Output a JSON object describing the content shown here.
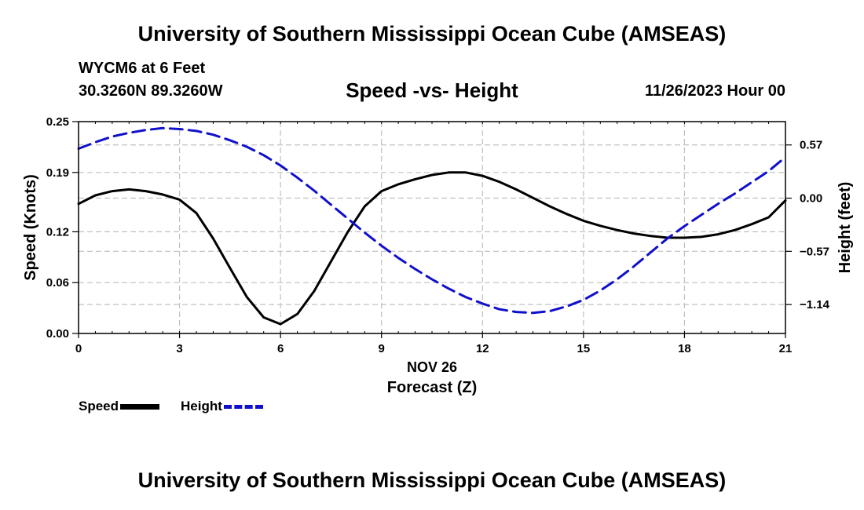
{
  "header": {
    "title": "University of Southern Mississippi Ocean Cube (AMSEAS)",
    "station": "WYCM6 at 6 Feet",
    "coords": "30.3260N  89.3260W",
    "subtitle": "Speed -vs- Height",
    "datetime": "11/26/2023 Hour 00"
  },
  "footer": {
    "title": "University of Southern Mississippi Ocean Cube (AMSEAS)"
  },
  "legend": {
    "speed": "Speed",
    "height": "Height"
  },
  "colors": {
    "speed": "#000000",
    "height": "#1010cc",
    "grid": "#c0c0c0"
  },
  "chart_data": {
    "type": "line",
    "xlabel": "Forecast (Z)",
    "xsublabel": "NOV 26",
    "ylabel": "Speed (Knots)",
    "y2label": "Height (feet)",
    "xlim": [
      0,
      21
    ],
    "ylim": [
      0,
      0.25
    ],
    "y2lim": [
      -1.45,
      0.82
    ],
    "xticks": [
      0,
      3,
      6,
      9,
      12,
      15,
      18,
      21
    ],
    "xtick_labels": [
      "0",
      "3",
      "6",
      "9",
      "12",
      "15",
      "18",
      "21"
    ],
    "yticks": [
      0,
      0.06,
      0.12,
      0.19,
      0.25
    ],
    "ytick_labels": [
      "0.00",
      "0.06",
      "0.12",
      "0.19",
      "0.25"
    ],
    "y2ticks": [
      0.57,
      0,
      -0.57,
      -1.14
    ],
    "y2tick_labels": [
      "0.57",
      "0.00",
      "−0.57",
      "−1.14"
    ],
    "grid": true,
    "legend_position": "bottom-left",
    "series": [
      {
        "name": "Speed",
        "axis": "left",
        "style": "solid",
        "x": [
          0,
          0.5,
          1,
          1.5,
          2,
          2.5,
          3,
          3.5,
          4,
          4.5,
          5,
          5.5,
          6,
          6.5,
          7,
          7.5,
          8,
          8.5,
          9,
          9.5,
          10,
          10.5,
          11,
          11.5,
          12,
          12.5,
          13,
          13.5,
          14,
          14.5,
          15,
          15.5,
          16,
          16.5,
          17,
          17.5,
          18,
          18.5,
          19,
          19.5,
          20,
          20.5,
          21
        ],
        "values": [
          0.153,
          0.163,
          0.168,
          0.17,
          0.168,
          0.164,
          0.158,
          0.142,
          0.112,
          0.077,
          0.043,
          0.019,
          0.011,
          0.023,
          0.05,
          0.085,
          0.12,
          0.15,
          0.168,
          0.176,
          0.182,
          0.187,
          0.19,
          0.19,
          0.186,
          0.179,
          0.17,
          0.16,
          0.15,
          0.141,
          0.133,
          0.127,
          0.122,
          0.118,
          0.115,
          0.113,
          0.113,
          0.114,
          0.117,
          0.122,
          0.129,
          0.137,
          0.157
        ]
      },
      {
        "name": "Height",
        "axis": "right",
        "style": "dashed",
        "x": [
          0,
          0.5,
          1,
          1.5,
          2,
          2.5,
          3,
          3.5,
          4,
          4.5,
          5,
          5.5,
          6,
          6.5,
          7,
          7.5,
          8,
          8.5,
          9,
          9.5,
          10,
          10.5,
          11,
          11.5,
          12,
          12.5,
          13,
          13.5,
          14,
          14.5,
          15,
          15.5,
          16,
          16.5,
          17,
          17.5,
          18,
          18.5,
          19,
          19.5,
          20,
          20.5,
          21
        ],
        "values": [
          0.53,
          0.6,
          0.66,
          0.7,
          0.73,
          0.75,
          0.74,
          0.72,
          0.68,
          0.62,
          0.55,
          0.46,
          0.35,
          0.22,
          0.08,
          -0.07,
          -0.22,
          -0.37,
          -0.51,
          -0.64,
          -0.76,
          -0.87,
          -0.97,
          -1.06,
          -1.13,
          -1.19,
          -1.22,
          -1.23,
          -1.21,
          -1.16,
          -1.09,
          -0.99,
          -0.87,
          -0.73,
          -0.58,
          -0.43,
          -0.3,
          -0.18,
          -0.06,
          0.05,
          0.17,
          0.29,
          0.44
        ]
      }
    ]
  }
}
